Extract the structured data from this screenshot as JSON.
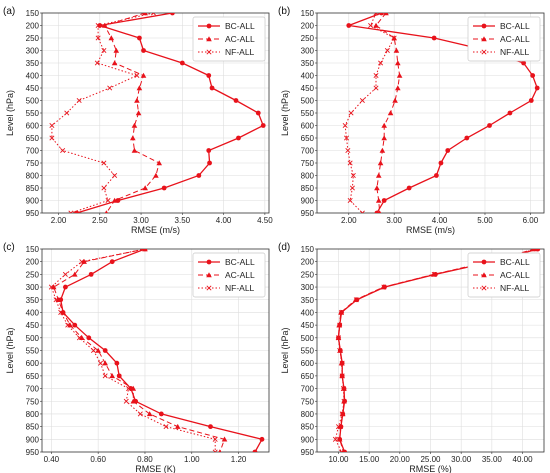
{
  "chart_data": [
    {
      "type": "line",
      "panel_label": "(a)",
      "xlabel": "RMSE (m/s)",
      "ylabel": "Level (hPa)",
      "xlim": [
        1.8,
        4.55
      ],
      "xticks": [
        2.0,
        2.5,
        3.0,
        3.5,
        4.0,
        4.5
      ],
      "xtick_labels": [
        "2.00",
        "2.50",
        "3.00",
        "3.50",
        "4.00",
        "4.50"
      ],
      "ylim": [
        950,
        150
      ],
      "yticks": [
        150,
        200,
        250,
        300,
        350,
        400,
        450,
        500,
        550,
        600,
        650,
        700,
        750,
        800,
        850,
        900,
        950
      ],
      "grid": true,
      "legend_position": "top-right",
      "levels": [
        150,
        200,
        250,
        300,
        350,
        400,
        450,
        500,
        550,
        600,
        650,
        700,
        750,
        800,
        850,
        900,
        950
      ],
      "series": [
        {
          "name": "BC-ALL",
          "style": "solid",
          "marker": "circle",
          "values": [
            3.38,
            2.5,
            2.98,
            3.03,
            3.5,
            3.82,
            3.86,
            4.15,
            4.42,
            4.48,
            4.18,
            3.82,
            3.83,
            3.7,
            3.28,
            2.72,
            2.22
          ]
        },
        {
          "name": "AC-ALL",
          "style": "dashed",
          "marker": "triangle",
          "values": [
            3.05,
            2.56,
            2.64,
            2.7,
            2.68,
            3.03,
            2.98,
            2.95,
            2.97,
            2.92,
            2.9,
            2.92,
            3.22,
            3.18,
            3.05,
            2.68,
            2.58
          ]
        },
        {
          "name": "NF-ALL",
          "style": "dotted",
          "marker": "x",
          "values": [
            3.15,
            2.48,
            2.48,
            2.55,
            2.47,
            2.95,
            2.62,
            2.25,
            2.1,
            1.92,
            1.92,
            2.05,
            2.55,
            2.68,
            2.55,
            2.6,
            2.15
          ]
        }
      ]
    },
    {
      "type": "line",
      "panel_label": "(b)",
      "xlabel": "RMSE (m/s)",
      "ylabel": "Level (hPa)",
      "xlim": [
        1.3,
        6.3
      ],
      "xticks": [
        2.0,
        3.0,
        4.0,
        5.0,
        6.0
      ],
      "xtick_labels": [
        "2.00",
        "3.00",
        "4.00",
        "5.00",
        "6.00"
      ],
      "ylim": [
        950,
        150
      ],
      "yticks": [
        150,
        200,
        250,
        300,
        350,
        400,
        450,
        500,
        550,
        600,
        650,
        700,
        750,
        800,
        850,
        900,
        950
      ],
      "grid": true,
      "legend_position": "top-right",
      "levels": [
        150,
        200,
        250,
        300,
        350,
        400,
        450,
        500,
        550,
        600,
        650,
        700,
        750,
        800,
        850,
        900,
        950
      ],
      "series": [
        {
          "name": "BC-ALL",
          "style": "solid",
          "marker": "circle",
          "values": [
            2.72,
            2.0,
            3.88,
            5.05,
            5.85,
            6.05,
            6.15,
            6.02,
            5.55,
            5.1,
            4.6,
            4.18,
            4.03,
            3.93,
            3.33,
            2.78,
            2.62
          ]
        },
        {
          "name": "AC-ALL",
          "style": "dashed",
          "marker": "triangle",
          "values": [
            2.82,
            2.6,
            3.0,
            3.05,
            3.08,
            3.12,
            3.08,
            3.02,
            2.92,
            2.78,
            2.78,
            2.74,
            2.7,
            2.66,
            2.62,
            2.66,
            2.68
          ]
        },
        {
          "name": "NF-ALL",
          "style": "dotted",
          "marker": "x",
          "values": [
            2.6,
            2.48,
            3.0,
            2.85,
            2.7,
            2.6,
            2.6,
            2.3,
            2.05,
            1.92,
            1.95,
            1.98,
            2.03,
            2.1,
            2.08,
            2.03,
            2.3
          ]
        }
      ]
    },
    {
      "type": "line",
      "panel_label": "(c)",
      "xlabel": "RMSE (K)",
      "ylabel": "Level (hPa)",
      "xlim": [
        0.36,
        1.33
      ],
      "xticks": [
        0.4,
        0.6,
        0.8,
        1.0,
        1.2
      ],
      "xtick_labels": [
        "0.40",
        "0.60",
        "0.80",
        "1.00",
        "1.20"
      ],
      "ylim": [
        950,
        150
      ],
      "yticks": [
        150,
        200,
        250,
        300,
        350,
        400,
        450,
        500,
        550,
        600,
        650,
        700,
        750,
        800,
        850,
        900,
        950
      ],
      "grid": true,
      "legend_position": "top-right",
      "levels": [
        150,
        200,
        250,
        300,
        350,
        400,
        450,
        500,
        550,
        600,
        650,
        700,
        750,
        800,
        850,
        900,
        950
      ],
      "series": [
        {
          "name": "BC-ALL",
          "style": "solid",
          "marker": "circle",
          "values": [
            0.8,
            0.66,
            0.57,
            0.46,
            0.44,
            0.45,
            0.5,
            0.56,
            0.63,
            0.68,
            0.69,
            0.74,
            0.76,
            0.87,
            1.08,
            1.3,
            1.27
          ]
        },
        {
          "name": "AC-ALL",
          "style": "dashed",
          "marker": "triangle",
          "values": [
            0.8,
            0.54,
            0.5,
            0.41,
            0.43,
            0.45,
            0.48,
            0.53,
            0.6,
            0.63,
            0.66,
            0.75,
            0.75,
            0.82,
            0.94,
            1.14,
            1.12
          ]
        },
        {
          "name": "NF-ALL",
          "style": "dotted",
          "marker": "x",
          "values": [
            0.8,
            0.53,
            0.46,
            0.4,
            0.42,
            0.44,
            0.47,
            0.52,
            0.58,
            0.61,
            0.63,
            0.73,
            0.72,
            0.78,
            0.89,
            1.1,
            1.1
          ]
        }
      ]
    },
    {
      "type": "line",
      "panel_label": "(d)",
      "xlabel": "RMSE (%)",
      "ylabel": "Level (hPa)",
      "xlim": [
        6.5,
        43.5
      ],
      "xticks": [
        10,
        15,
        20,
        25,
        30,
        35,
        40
      ],
      "xtick_labels": [
        "10.00",
        "15.00",
        "20.00",
        "25.00",
        "30.00",
        "35.00",
        "40.00"
      ],
      "ylim": [
        950,
        150
      ],
      "yticks": [
        150,
        200,
        250,
        300,
        350,
        400,
        450,
        500,
        550,
        600,
        650,
        700,
        750,
        800,
        850,
        900,
        950
      ],
      "grid": true,
      "legend_position": "top-right",
      "levels": [
        150,
        200,
        250,
        300,
        350,
        400,
        450,
        500,
        550,
        600,
        650,
        700,
        750,
        800,
        850,
        900,
        950
      ],
      "series": [
        {
          "name": "BC-ALL",
          "style": "solid",
          "marker": "circle",
          "values": [
            42.5,
            35.0,
            25.8,
            17.5,
            13.0,
            10.5,
            10.2,
            10.0,
            10.3,
            10.6,
            10.6,
            10.9,
            11.0,
            10.7,
            10.4,
            10.2,
            11.0
          ]
        },
        {
          "name": "AC-ALL",
          "style": "dashed",
          "marker": "triangle",
          "values": [
            42.0,
            34.5,
            25.5,
            17.3,
            12.8,
            10.4,
            10.1,
            10.0,
            10.3,
            10.5,
            10.6,
            10.9,
            10.9,
            10.7,
            10.3,
            10.2,
            10.8
          ]
        },
        {
          "name": "NF-ALL",
          "style": "dotted",
          "marker": "x",
          "values": [
            42.2,
            34.8,
            25.6,
            17.4,
            12.9,
            10.5,
            10.2,
            10.0,
            10.2,
            10.6,
            10.6,
            10.8,
            10.9,
            10.6,
            10.0,
            9.5,
            10.5
          ]
        }
      ]
    }
  ],
  "style": {
    "line_color": "#e8121b",
    "grid_color": "#dedede",
    "axis_color": "#333333"
  }
}
